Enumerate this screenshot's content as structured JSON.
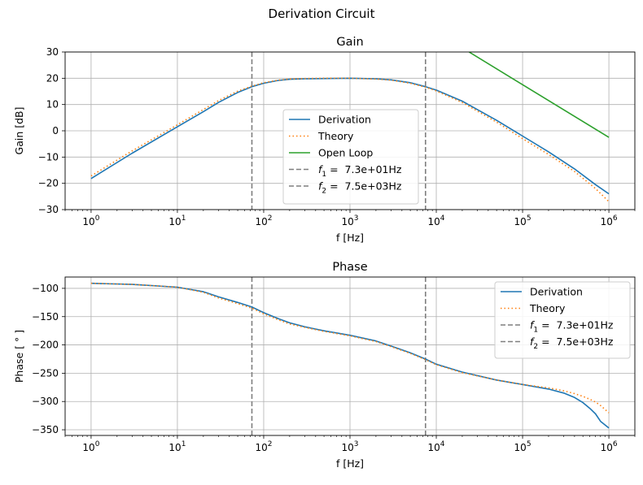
{
  "figure": {
    "suptitle": "Derivation Circuit"
  },
  "colors": {
    "derivation": "#1f77b4",
    "theory": "#ff7f0e",
    "open_loop": "#2ca02c",
    "vline": "#7f7f7f",
    "grid": "#b0b0b0"
  },
  "chart_data": [
    {
      "type": "line",
      "title": "Gain",
      "xlabel": "f [Hz]",
      "ylabel": "Gain [dB]",
      "xscale": "log",
      "xlim": [
        0.5,
        2000000
      ],
      "ylim": [
        -30,
        30
      ],
      "x_ticks": [
        1,
        10,
        100,
        1000,
        10000,
        100000,
        1000000
      ],
      "x_tick_labels": [
        {
          "base": "10",
          "exp": "0"
        },
        {
          "base": "10",
          "exp": "1"
        },
        {
          "base": "10",
          "exp": "2"
        },
        {
          "base": "10",
          "exp": "3"
        },
        {
          "base": "10",
          "exp": "4"
        },
        {
          "base": "10",
          "exp": "5"
        },
        {
          "base": "10",
          "exp": "6"
        }
      ],
      "y_ticks": [
        -30,
        -20,
        -10,
        0,
        10,
        20,
        30
      ],
      "y_tick_labels": [
        "−30",
        "−20",
        "−10",
        "0",
        "10",
        "20",
        "30"
      ],
      "grid": true,
      "legend": "center",
      "vlines": [
        {
          "x": 73,
          "label_sym": "f",
          "label_sub": "1",
          "label_val": " =  7.3e+01Hz"
        },
        {
          "x": 7500,
          "label_sym": "f",
          "label_sub": "2",
          "label_val": " =  7.5e+03Hz"
        }
      ],
      "series": [
        {
          "name": "Derivation",
          "style": "solid",
          "color": "derivation",
          "x": [
            1,
            3,
            10,
            20,
            30,
            50,
            73,
            100,
            150,
            200,
            300,
            500,
            1000,
            2000,
            3000,
            5000,
            7500,
            10000,
            20000,
            50000,
            100000,
            200000,
            400000,
            700000,
            1000000
          ],
          "y": [
            -18.2,
            -8.5,
            1.5,
            7.3,
            10.8,
            14.6,
            16.8,
            18.1,
            19.2,
            19.6,
            19.8,
            19.9,
            20.0,
            19.8,
            19.4,
            18.3,
            16.8,
            15.5,
            11.3,
            4.0,
            -2.0,
            -8.0,
            -14.5,
            -20.5,
            -24.0
          ]
        },
        {
          "name": "Theory",
          "style": "dotted",
          "color": "theory",
          "x": [
            1,
            3,
            10,
            20,
            30,
            50,
            73,
            100,
            150,
            200,
            300,
            500,
            1000,
            2000,
            3000,
            5000,
            7500,
            10000,
            20000,
            50000,
            100000,
            200000,
            400000,
            700000,
            1000000
          ],
          "y": [
            -17.2,
            -7.6,
            2.3,
            8.1,
            11.5,
            15.1,
            17.0,
            18.3,
            19.3,
            19.7,
            19.9,
            20.0,
            20.0,
            19.7,
            19.3,
            18.1,
            16.6,
            15.2,
            10.8,
            3.3,
            -3.0,
            -9.0,
            -15.5,
            -22.0,
            -27.0
          ]
        },
        {
          "name": "Open Loop",
          "style": "solid",
          "color": "open_loop",
          "x": [
            24000,
            1000000
          ],
          "y": [
            30.0,
            -2.5
          ]
        }
      ]
    },
    {
      "type": "line",
      "title": "Phase",
      "xlabel": "f [Hz]",
      "ylabel": "Phase [ ° ]",
      "xscale": "log",
      "xlim": [
        0.5,
        2000000
      ],
      "ylim": [
        -360,
        -80
      ],
      "x_ticks": [
        1,
        10,
        100,
        1000,
        10000,
        100000,
        1000000
      ],
      "x_tick_labels": [
        {
          "base": "10",
          "exp": "0"
        },
        {
          "base": "10",
          "exp": "1"
        },
        {
          "base": "10",
          "exp": "2"
        },
        {
          "base": "10",
          "exp": "3"
        },
        {
          "base": "10",
          "exp": "4"
        },
        {
          "base": "10",
          "exp": "5"
        },
        {
          "base": "10",
          "exp": "6"
        }
      ],
      "y_ticks": [
        -350,
        -300,
        -250,
        -200,
        -150,
        -100
      ],
      "y_tick_labels": [
        "−350",
        "−300",
        "−250",
        "−200",
        "−150",
        "−100"
      ],
      "grid": true,
      "legend": "upper right",
      "vlines": [
        {
          "x": 73,
          "label_sym": "f",
          "label_sub": "1",
          "label_val": " =  7.3e+01Hz"
        },
        {
          "x": 7500,
          "label_sym": "f",
          "label_sub": "2",
          "label_val": " =  7.5e+03Hz"
        }
      ],
      "series": [
        {
          "name": "Derivation",
          "style": "solid",
          "color": "derivation",
          "x": [
            1,
            3,
            10,
            20,
            30,
            50,
            73,
            100,
            150,
            200,
            300,
            500,
            1000,
            2000,
            3000,
            5000,
            7500,
            10000,
            20000,
            50000,
            100000,
            200000,
            300000,
            400000,
            500000,
            600000,
            700000,
            800000,
            1000000
          ],
          "y": [
            -91,
            -93,
            -98,
            -106,
            -115,
            -125,
            -133,
            -143,
            -154,
            -161,
            -168,
            -175,
            -183,
            -193,
            -202,
            -214,
            -225,
            -234,
            -248,
            -262,
            -270,
            -278,
            -285,
            -293,
            -302,
            -312,
            -322,
            -335,
            -347
          ]
        },
        {
          "name": "Theory",
          "style": "dotted",
          "color": "theory",
          "x": [
            1,
            3,
            10,
            20,
            30,
            50,
            73,
            100,
            150,
            200,
            300,
            500,
            1000,
            2000,
            3000,
            5000,
            7500,
            10000,
            20000,
            50000,
            100000,
            200000,
            300000,
            400000,
            500000,
            600000,
            700000,
            800000,
            1000000
          ],
          "y": [
            -91,
            -93,
            -98,
            -107,
            -117,
            -127,
            -135,
            -145,
            -156,
            -163,
            -169,
            -176,
            -184,
            -194,
            -203,
            -215,
            -226,
            -235,
            -249,
            -262,
            -270,
            -276,
            -281,
            -286,
            -291,
            -296,
            -301,
            -307,
            -320
          ]
        }
      ]
    }
  ]
}
